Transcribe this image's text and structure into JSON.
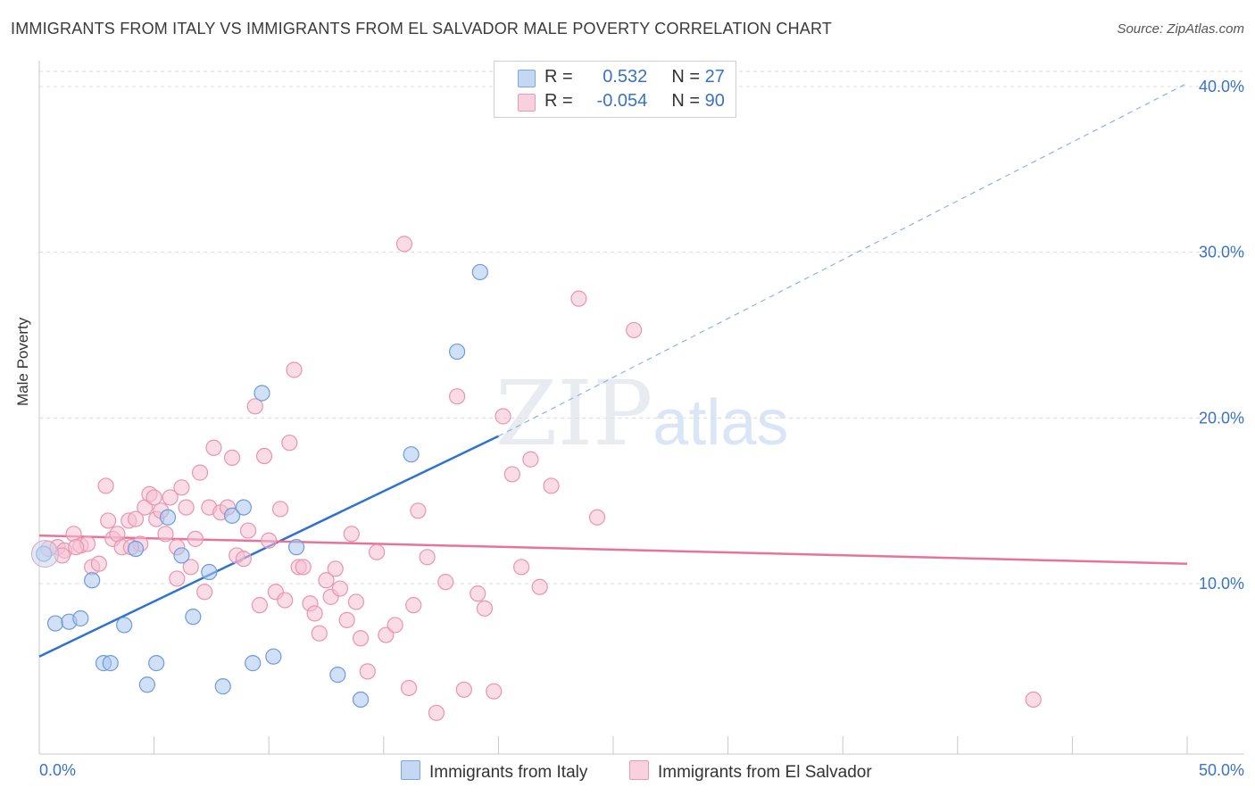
{
  "title": "IMMIGRANTS FROM ITALY VS IMMIGRANTS FROM EL SALVADOR MALE POVERTY CORRELATION CHART",
  "source": "Source: ZipAtlas.com",
  "watermark": {
    "zip": "ZIP",
    "atlas": "atlas"
  },
  "chart_data": {
    "type": "scatter",
    "ylabel": "Male Poverty",
    "xlabel": "",
    "xlim": [
      0,
      50
    ],
    "ylim": [
      0,
      42
    ],
    "x_tick_labels": [
      "0.0%",
      "50.0%"
    ],
    "y_ticks": [
      10,
      20,
      30,
      40
    ],
    "y_tick_labels": [
      "10.0%",
      "20.0%",
      "30.0%",
      "40.0%"
    ],
    "grid": "horizontal dashed",
    "legend_position": "top-center",
    "series": [
      {
        "name": "Immigrants from Italy",
        "color": "#a9c7ef",
        "stroke": "#6f9bd8",
        "line_color": "#2f72cf",
        "stats": {
          "r_label": "R =",
          "r_value": "0.532",
          "n_label": "N =",
          "n_value": "27"
        },
        "trend": {
          "x0": 0,
          "y0": 5.6,
          "x1": 20,
          "y1": 18.9,
          "extend_to_x": 50,
          "extend_to_y": 40.2
        },
        "points": [
          [
            0.2,
            11.8
          ],
          [
            0.7,
            7.6
          ],
          [
            1.3,
            7.7
          ],
          [
            1.8,
            7.9
          ],
          [
            2.3,
            10.2
          ],
          [
            2.8,
            5.2
          ],
          [
            3.1,
            5.2
          ],
          [
            3.7,
            7.5
          ],
          [
            4.2,
            12.1
          ],
          [
            4.7,
            3.9
          ],
          [
            5.1,
            5.2
          ],
          [
            5.6,
            14.0
          ],
          [
            6.2,
            11.7
          ],
          [
            6.7,
            8.0
          ],
          [
            7.4,
            10.7
          ],
          [
            8.0,
            3.8
          ],
          [
            8.4,
            14.1
          ],
          [
            8.9,
            14.6
          ],
          [
            9.3,
            5.2
          ],
          [
            9.7,
            21.5
          ],
          [
            10.2,
            5.6
          ],
          [
            11.2,
            12.2
          ],
          [
            13.0,
            4.5
          ],
          [
            14.0,
            3.0
          ],
          [
            16.2,
            17.8
          ],
          [
            18.2,
            24.0
          ],
          [
            19.2,
            28.8
          ]
        ]
      },
      {
        "name": "Immigrants from El Salvador",
        "color": "#f6bfd1",
        "stroke": "#e994b1",
        "line_color": "#e8739a",
        "stats": {
          "r_label": "R =",
          "r_value": "-0.054",
          "n_label": "N =",
          "n_value": "90"
        },
        "trend": {
          "x0": 0,
          "y0": 12.9,
          "x1": 50,
          "y1": 11.2
        },
        "points": [
          [
            0.4,
            12.1
          ],
          [
            0.8,
            12.2
          ],
          [
            1.1,
            12.0
          ],
          [
            1.5,
            13.0
          ],
          [
            1.8,
            12.3
          ],
          [
            2.1,
            12.4
          ],
          [
            2.3,
            11.0
          ],
          [
            2.6,
            11.2
          ],
          [
            2.9,
            15.9
          ],
          [
            3.2,
            12.7
          ],
          [
            3.4,
            13.0
          ],
          [
            3.6,
            12.2
          ],
          [
            3.9,
            13.8
          ],
          [
            4.2,
            13.9
          ],
          [
            4.4,
            12.4
          ],
          [
            4.6,
            14.6
          ],
          [
            4.8,
            15.4
          ],
          [
            5.1,
            13.9
          ],
          [
            5.3,
            14.4
          ],
          [
            5.5,
            13.0
          ],
          [
            5.7,
            15.2
          ],
          [
            6.0,
            10.3
          ],
          [
            6.2,
            15.8
          ],
          [
            6.4,
            14.6
          ],
          [
            6.6,
            11.0
          ],
          [
            6.8,
            12.7
          ],
          [
            7.0,
            16.7
          ],
          [
            7.2,
            9.5
          ],
          [
            7.4,
            14.6
          ],
          [
            7.6,
            18.2
          ],
          [
            7.9,
            14.3
          ],
          [
            8.2,
            14.6
          ],
          [
            8.4,
            17.6
          ],
          [
            8.6,
            11.7
          ],
          [
            8.9,
            11.5
          ],
          [
            9.1,
            13.2
          ],
          [
            9.4,
            20.7
          ],
          [
            9.6,
            8.7
          ],
          [
            9.8,
            17.7
          ],
          [
            10.0,
            12.6
          ],
          [
            10.3,
            9.5
          ],
          [
            10.5,
            14.5
          ],
          [
            10.7,
            9.0
          ],
          [
            10.9,
            18.5
          ],
          [
            11.1,
            22.9
          ],
          [
            11.3,
            11.0
          ],
          [
            11.5,
            11.0
          ],
          [
            11.8,
            8.8
          ],
          [
            12.0,
            8.2
          ],
          [
            12.2,
            7.0
          ],
          [
            12.5,
            10.2
          ],
          [
            12.7,
            9.2
          ],
          [
            12.9,
            10.9
          ],
          [
            13.1,
            9.7
          ],
          [
            13.4,
            7.8
          ],
          [
            13.6,
            13.0
          ],
          [
            13.8,
            8.9
          ],
          [
            14.0,
            6.7
          ],
          [
            14.3,
            4.7
          ],
          [
            14.7,
            11.9
          ],
          [
            15.1,
            6.9
          ],
          [
            15.5,
            7.5
          ],
          [
            15.9,
            30.5
          ],
          [
            16.1,
            3.7
          ],
          [
            16.3,
            8.7
          ],
          [
            16.5,
            14.4
          ],
          [
            16.9,
            11.6
          ],
          [
            17.3,
            2.2
          ],
          [
            17.7,
            10.1
          ],
          [
            18.2,
            21.3
          ],
          [
            18.5,
            3.6
          ],
          [
            19.1,
            9.4
          ],
          [
            19.4,
            8.5
          ],
          [
            19.8,
            3.5
          ],
          [
            20.2,
            20.1
          ],
          [
            20.6,
            16.6
          ],
          [
            21.0,
            11.0
          ],
          [
            21.4,
            17.5
          ],
          [
            21.8,
            9.8
          ],
          [
            22.3,
            15.9
          ],
          [
            23.5,
            27.2
          ],
          [
            24.3,
            14.0
          ],
          [
            25.9,
            25.3
          ],
          [
            1.0,
            11.7
          ],
          [
            1.6,
            12.2
          ],
          [
            3.0,
            13.8
          ],
          [
            4.0,
            12.2
          ],
          [
            5.0,
            15.2
          ],
          [
            6.0,
            12.2
          ],
          [
            43.3,
            3.0
          ]
        ]
      }
    ]
  }
}
